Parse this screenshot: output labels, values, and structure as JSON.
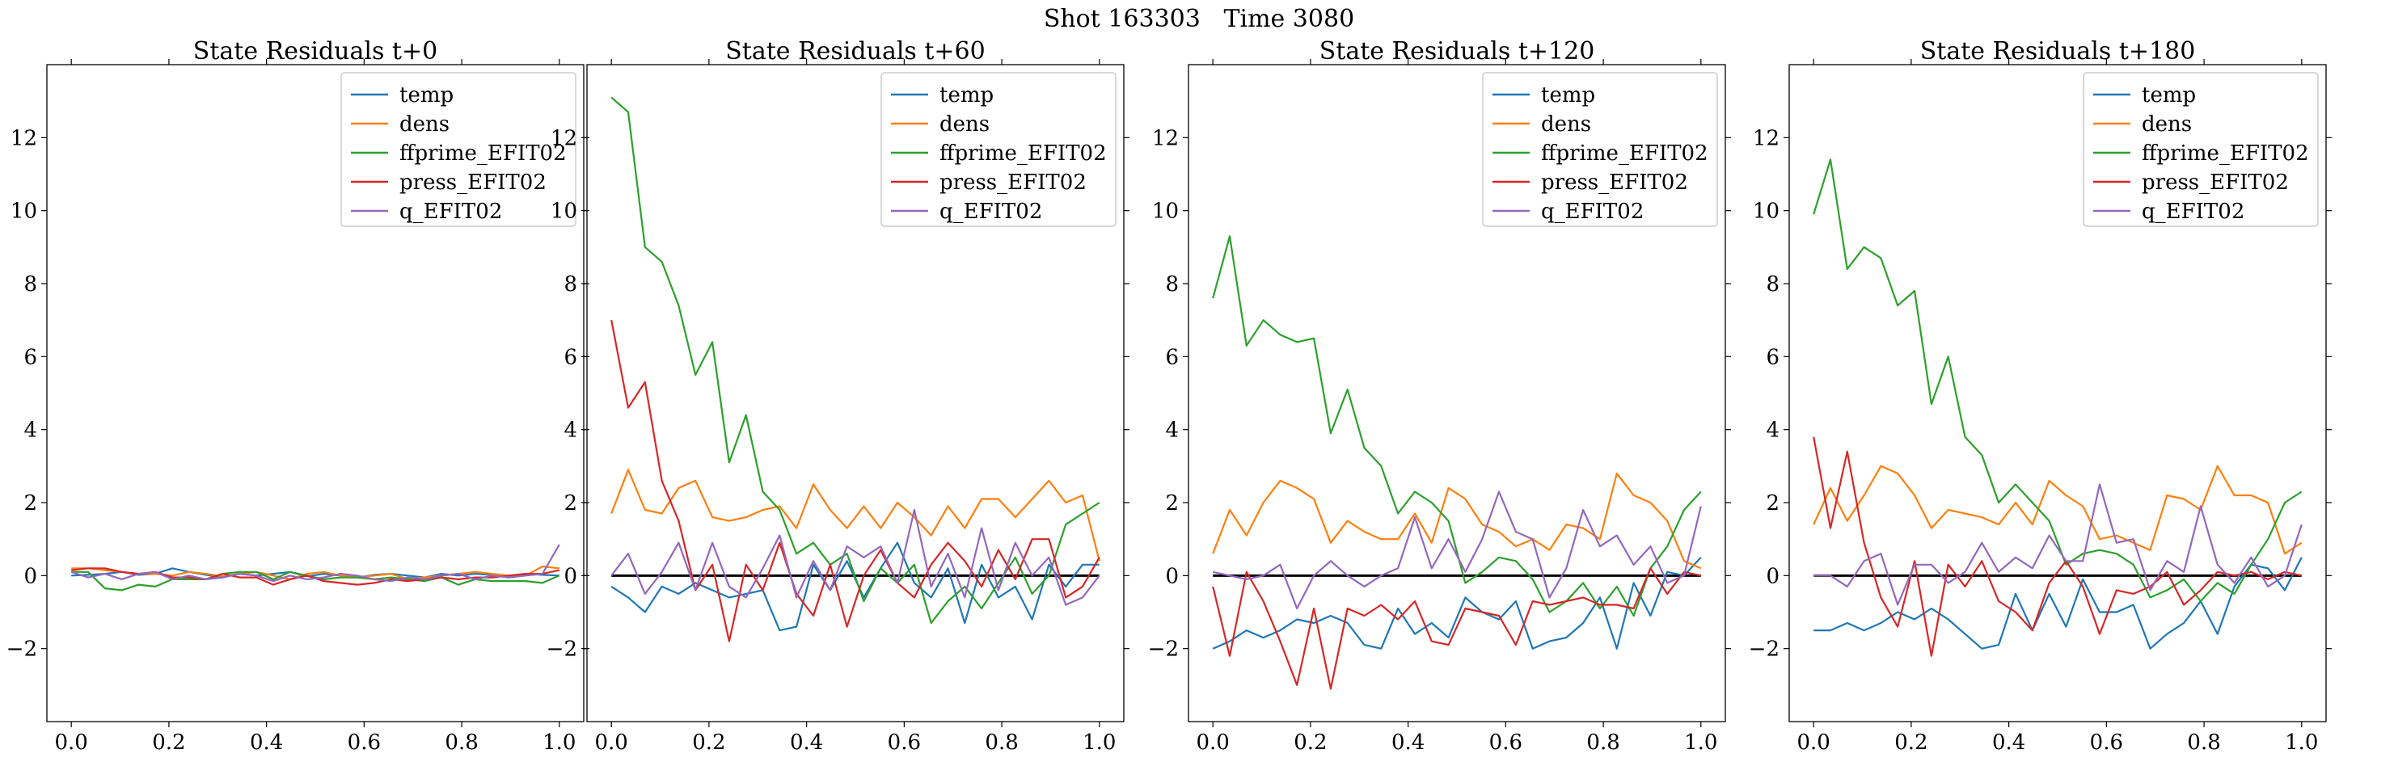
{
  "figure": {
    "suptitle": "Shot 163303   Time 3080"
  },
  "colors": {
    "temp": "#1f77b4",
    "dens": "#ff7f0e",
    "ffprime_EFIT02": "#2ca02c",
    "press_EFIT02": "#d62728",
    "q_EFIT02": "#9467bd",
    "zero_line": "#000000"
  },
  "chart_data": [
    {
      "type": "line",
      "title": "State Residuals t+0",
      "xlabel": "",
      "ylabel": "",
      "xlim": [
        -0.05,
        1.05
      ],
      "ylim": [
        -4,
        14
      ],
      "xticks": [
        "0.0",
        "0.2",
        "0.4",
        "0.6",
        "0.8",
        "1.0"
      ],
      "yticks": [
        "−2",
        "0",
        "2",
        "4",
        "6",
        "8",
        "10",
        "12"
      ],
      "legend": "top-right",
      "zero_line": false,
      "x": [
        0.0,
        0.0345,
        0.069,
        0.1034,
        0.1379,
        0.1724,
        0.2069,
        0.2414,
        0.2759,
        0.3103,
        0.3448,
        0.3793,
        0.4138,
        0.4483,
        0.4828,
        0.5172,
        0.5517,
        0.5862,
        0.6207,
        0.6552,
        0.6897,
        0.7241,
        0.7586,
        0.7931,
        0.8276,
        0.8621,
        0.8966,
        0.931,
        0.9655,
        1.0
      ],
      "series": [
        {
          "name": "temp",
          "values": [
            0.0,
            0.02,
            0.05,
            0.1,
            0.02,
            0.05,
            0.2,
            0.1,
            0.02,
            -0.05,
            0.05,
            0.0,
            0.05,
            0.1,
            -0.02,
            0.05,
            0.0,
            -0.05,
            0.02,
            0.05,
            0.0,
            -0.05,
            0.05,
            0.0,
            0.05,
            0.02,
            0.0,
            0.05,
            0.02,
            0.0
          ]
        },
        {
          "name": "dens",
          "values": [
            0.2,
            0.2,
            0.15,
            0.1,
            0.05,
            0.05,
            0.0,
            0.1,
            0.05,
            -0.02,
            0.05,
            0.1,
            0.0,
            -0.1,
            0.05,
            0.1,
            0.0,
            -0.05,
            0.0,
            0.05,
            -0.1,
            -0.05,
            0.0,
            0.05,
            0.1,
            0.05,
            0.0,
            0.0,
            0.25,
            0.2
          ]
        },
        {
          "name": "ffprime_EFIT02",
          "values": [
            0.1,
            0.1,
            -0.35,
            -0.4,
            -0.25,
            -0.3,
            -0.1,
            -0.1,
            -0.1,
            0.05,
            0.1,
            0.1,
            -0.1,
            0.1,
            0.0,
            -0.1,
            -0.05,
            -0.05,
            -0.1,
            -0.05,
            -0.1,
            -0.15,
            -0.05,
            -0.25,
            -0.1,
            -0.15,
            -0.15,
            -0.15,
            -0.2,
            0.0
          ]
        },
        {
          "name": "press_EFIT02",
          "values": [
            0.15,
            0.2,
            0.2,
            0.1,
            0.05,
            0.1,
            -0.05,
            -0.05,
            -0.1,
            0.05,
            -0.05,
            -0.05,
            -0.25,
            -0.1,
            0.0,
            -0.15,
            -0.2,
            -0.25,
            -0.2,
            -0.1,
            -0.15,
            -0.1,
            -0.05,
            -0.1,
            -0.05,
            -0.05,
            0.0,
            0.05,
            0.05,
            0.15
          ]
        },
        {
          "name": "q_EFIT02",
          "values": [
            0.1,
            -0.05,
            0.05,
            -0.1,
            0.05,
            0.1,
            -0.1,
            0.0,
            -0.1,
            -0.05,
            0.05,
            0.0,
            -0.15,
            0.0,
            -0.1,
            -0.05,
            0.05,
            0.0,
            -0.1,
            -0.15,
            -0.05,
            -0.1,
            0.0,
            0.05,
            -0.1,
            0.0,
            -0.05,
            0.0,
            0.05,
            0.85
          ]
        }
      ]
    },
    {
      "type": "line",
      "title": "State Residuals t+60",
      "xlabel": "",
      "ylabel": "",
      "xlim": [
        -0.05,
        1.05
      ],
      "ylim": [
        -4,
        14
      ],
      "xticks": [
        "0.0",
        "0.2",
        "0.4",
        "0.6",
        "0.8",
        "1.0"
      ],
      "yticks": [
        "−2",
        "0",
        "2",
        "4",
        "6",
        "8",
        "10",
        "12"
      ],
      "legend": "top-right",
      "zero_line": true,
      "x": [
        0.0,
        0.0345,
        0.069,
        0.1034,
        0.1379,
        0.1724,
        0.2069,
        0.2414,
        0.2759,
        0.3103,
        0.3448,
        0.3793,
        0.4138,
        0.4483,
        0.4828,
        0.5172,
        0.5517,
        0.5862,
        0.6207,
        0.6552,
        0.6897,
        0.7241,
        0.7586,
        0.7931,
        0.8276,
        0.8621,
        0.8966,
        0.931,
        0.9655,
        1.0
      ],
      "series": [
        {
          "name": "temp",
          "values": [
            -0.3,
            -0.6,
            -1.0,
            -0.3,
            -0.5,
            -0.2,
            -0.4,
            -0.6,
            -0.5,
            -0.4,
            -1.5,
            -1.4,
            0.3,
            -0.4,
            0.4,
            -0.6,
            0.2,
            0.9,
            -0.2,
            -0.6,
            0.2,
            -1.3,
            0.3,
            -0.6,
            -0.3,
            -1.2,
            0.3,
            -0.3,
            0.3,
            0.3
          ]
        },
        {
          "name": "dens",
          "values": [
            1.7,
            2.9,
            1.8,
            1.7,
            2.4,
            2.6,
            1.6,
            1.5,
            1.6,
            1.8,
            1.9,
            1.3,
            2.5,
            1.8,
            1.3,
            1.9,
            1.3,
            2.0,
            1.6,
            1.1,
            1.9,
            1.3,
            2.1,
            2.1,
            1.6,
            2.1,
            2.6,
            2.0,
            2.2,
            0.4
          ]
        },
        {
          "name": "ffprime_EFIT02",
          "values": [
            13.1,
            12.7,
            9.0,
            8.6,
            7.4,
            5.5,
            6.4,
            3.1,
            4.4,
            2.3,
            1.8,
            0.6,
            0.9,
            0.3,
            0.6,
            -0.7,
            0.2,
            -0.2,
            0.3,
            -1.3,
            -0.7,
            -0.3,
            -0.9,
            -0.2,
            0.5,
            -0.5,
            0.0,
            1.4,
            1.7,
            2.0
          ]
        },
        {
          "name": "press_EFIT02",
          "values": [
            7.0,
            4.6,
            5.3,
            2.6,
            1.5,
            -0.4,
            0.3,
            -1.8,
            0.3,
            -0.4,
            0.9,
            -0.5,
            -1.1,
            0.3,
            -1.4,
            0.0,
            0.7,
            -0.2,
            -0.6,
            0.3,
            0.9,
            0.4,
            -0.3,
            0.7,
            -0.1,
            1.0,
            1.0,
            -0.6,
            -0.3,
            0.5
          ]
        },
        {
          "name": "q_EFIT02",
          "values": [
            0.0,
            0.6,
            -0.5,
            0.1,
            0.9,
            -0.4,
            0.9,
            -0.3,
            -0.6,
            0.2,
            1.1,
            -0.6,
            0.4,
            -0.4,
            0.8,
            0.5,
            0.8,
            -0.2,
            1.8,
            -0.3,
            0.6,
            -0.6,
            1.3,
            -0.4,
            0.9,
            0.0,
            0.5,
            -0.8,
            -0.6,
            0.0
          ]
        }
      ]
    },
    {
      "type": "line",
      "title": "State Residuals t+120",
      "xlabel": "",
      "ylabel": "",
      "xlim": [
        -0.05,
        1.05
      ],
      "ylim": [
        -4,
        14
      ],
      "xticks": [
        "0.0",
        "0.2",
        "0.4",
        "0.6",
        "0.8",
        "1.0"
      ],
      "yticks": [
        "−2",
        "0",
        "2",
        "4",
        "6",
        "8",
        "10",
        "12"
      ],
      "legend": "top-right",
      "zero_line": true,
      "x": [
        0.0,
        0.0345,
        0.069,
        0.1034,
        0.1379,
        0.1724,
        0.2069,
        0.2414,
        0.2759,
        0.3103,
        0.3448,
        0.3793,
        0.4138,
        0.4483,
        0.4828,
        0.5172,
        0.5517,
        0.5862,
        0.6207,
        0.6552,
        0.6897,
        0.7241,
        0.7586,
        0.7931,
        0.8276,
        0.8621,
        0.8966,
        0.931,
        0.9655,
        1.0
      ],
      "series": [
        {
          "name": "temp",
          "values": [
            -2.0,
            -1.8,
            -1.5,
            -1.7,
            -1.5,
            -1.2,
            -1.3,
            -1.1,
            -1.3,
            -1.9,
            -2.0,
            -0.9,
            -1.6,
            -1.3,
            -1.7,
            -0.6,
            -1.0,
            -1.2,
            -0.7,
            -2.0,
            -1.8,
            -1.7,
            -1.3,
            -0.6,
            -2.0,
            -0.2,
            -1.1,
            0.1,
            0.0,
            0.5
          ]
        },
        {
          "name": "dens",
          "values": [
            0.6,
            1.8,
            1.1,
            2.0,
            2.6,
            2.4,
            2.1,
            0.9,
            1.5,
            1.2,
            1.0,
            1.0,
            1.7,
            0.9,
            2.4,
            2.1,
            1.4,
            1.2,
            0.8,
            1.0,
            0.7,
            1.4,
            1.3,
            1.0,
            2.8,
            2.2,
            2.0,
            1.5,
            0.4,
            0.2
          ]
        },
        {
          "name": "ffprime_EFIT02",
          "values": [
            7.6,
            9.3,
            6.3,
            7.0,
            6.6,
            6.4,
            6.5,
            3.9,
            5.1,
            3.5,
            3.0,
            1.7,
            2.3,
            2.0,
            1.5,
            -0.2,
            0.1,
            0.5,
            0.4,
            -0.1,
            -1.0,
            -0.7,
            -0.2,
            -0.9,
            -0.3,
            -1.1,
            0.2,
            0.8,
            1.8,
            2.3
          ]
        },
        {
          "name": "press_EFIT02",
          "values": [
            -0.3,
            -2.2,
            0.1,
            -0.7,
            -1.8,
            -3.0,
            -0.9,
            -3.1,
            -0.9,
            -1.1,
            -0.8,
            -1.2,
            -0.7,
            -1.8,
            -1.9,
            -0.9,
            -1.0,
            -1.1,
            -1.9,
            -0.7,
            -0.8,
            -0.7,
            -0.6,
            -0.8,
            -0.8,
            -0.9,
            0.2,
            -0.5,
            0.1,
            0.0
          ]
        },
        {
          "name": "q_EFIT02",
          "values": [
            0.1,
            0.0,
            -0.1,
            0.0,
            0.3,
            -0.9,
            0.0,
            0.4,
            0.0,
            -0.3,
            0.0,
            0.2,
            1.6,
            0.2,
            1.0,
            0.1,
            1.0,
            2.3,
            1.2,
            1.0,
            -0.6,
            0.2,
            1.8,
            0.8,
            1.1,
            0.3,
            0.8,
            -0.2,
            0.0,
            1.9
          ]
        }
      ]
    },
    {
      "type": "line",
      "title": "State Residuals t+180",
      "xlabel": "",
      "ylabel": "",
      "xlim": [
        -0.05,
        1.05
      ],
      "ylim": [
        -4,
        14
      ],
      "xticks": [
        "0.0",
        "0.2",
        "0.4",
        "0.6",
        "0.8",
        "1.0"
      ],
      "yticks": [
        "−2",
        "0",
        "2",
        "4",
        "6",
        "8",
        "10",
        "12"
      ],
      "legend": "top-right",
      "zero_line": true,
      "x": [
        0.0,
        0.0345,
        0.069,
        0.1034,
        0.1379,
        0.1724,
        0.2069,
        0.2414,
        0.2759,
        0.3103,
        0.3448,
        0.3793,
        0.4138,
        0.4483,
        0.4828,
        0.5172,
        0.5517,
        0.5862,
        0.6207,
        0.6552,
        0.6897,
        0.7241,
        0.7586,
        0.7931,
        0.8276,
        0.8621,
        0.8966,
        0.931,
        0.9655,
        1.0
      ],
      "series": [
        {
          "name": "temp",
          "values": [
            -1.5,
            -1.5,
            -1.3,
            -1.5,
            -1.3,
            -1.0,
            -1.2,
            -0.9,
            -1.2,
            -1.6,
            -2.0,
            -1.9,
            -0.5,
            -1.5,
            -0.5,
            -1.4,
            -0.1,
            -1.0,
            -1.0,
            -0.8,
            -2.0,
            -1.6,
            -1.3,
            -0.7,
            -1.6,
            -0.3,
            0.3,
            0.2,
            -0.4,
            0.5
          ]
        },
        {
          "name": "dens",
          "values": [
            1.4,
            2.4,
            1.5,
            2.2,
            3.0,
            2.8,
            2.2,
            1.3,
            1.8,
            1.7,
            1.6,
            1.4,
            2.0,
            1.4,
            2.6,
            2.2,
            1.9,
            1.0,
            1.1,
            0.9,
            0.7,
            2.2,
            2.1,
            1.8,
            3.0,
            2.2,
            2.2,
            2.0,
            0.6,
            0.9
          ]
        },
        {
          "name": "ffprime_EFIT02",
          "values": [
            9.9,
            11.4,
            8.4,
            9.0,
            8.7,
            7.4,
            7.8,
            4.7,
            6.0,
            3.8,
            3.3,
            2.0,
            2.5,
            2.0,
            1.5,
            0.3,
            0.6,
            0.7,
            0.6,
            0.3,
            -0.6,
            -0.4,
            -0.1,
            -0.7,
            -0.2,
            -0.5,
            0.3,
            1.0,
            2.0,
            2.3
          ]
        },
        {
          "name": "press_EFIT02",
          "values": [
            3.8,
            1.3,
            3.4,
            0.9,
            -0.6,
            -1.4,
            0.4,
            -2.2,
            0.3,
            -0.3,
            0.4,
            -0.7,
            -1.0,
            -1.5,
            -0.2,
            0.4,
            -0.3,
            -1.6,
            -0.4,
            -0.5,
            -0.3,
            0.1,
            -0.8,
            -0.4,
            0.1,
            0.0,
            0.1,
            -0.1,
            0.1,
            0.0
          ]
        },
        {
          "name": "q_EFIT02",
          "values": [
            0.0,
            0.0,
            -0.3,
            0.4,
            0.6,
            -0.8,
            0.3,
            0.3,
            -0.2,
            0.1,
            0.9,
            0.1,
            0.5,
            0.2,
            1.1,
            0.4,
            0.4,
            2.5,
            0.9,
            1.0,
            -0.4,
            0.4,
            0.1,
            1.9,
            0.3,
            -0.2,
            0.5,
            -0.3,
            0.0,
            1.4
          ]
        }
      ]
    }
  ]
}
